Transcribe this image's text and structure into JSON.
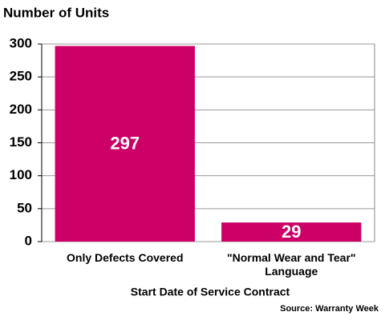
{
  "chart_data": {
    "type": "bar",
    "title": "Number of Units",
    "categories": [
      "Only Defects Covered",
      "\"Normal Wear and Tear\" Language"
    ],
    "values": [
      297,
      29
    ],
    "color": "#cc0066",
    "ylim": [
      0,
      300
    ],
    "yticks": [
      0,
      50,
      100,
      150,
      200,
      250,
      300
    ],
    "grid": true,
    "xlabel": "Start Date of Service Contract",
    "source": "Source: Warranty Week"
  }
}
